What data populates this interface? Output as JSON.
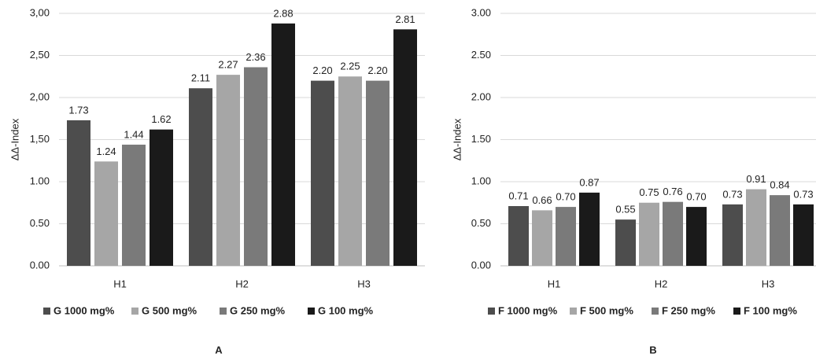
{
  "chart_data": [
    {
      "type": "bar",
      "panel_label": "A",
      "y_label": "ΔΔ-Index",
      "categories": [
        "H1",
        "H2",
        "H3"
      ],
      "series": [
        {
          "name": "G 1000 mg%",
          "color": "#4d4d4d",
          "values": [
            1.73,
            2.11,
            2.2
          ],
          "value_labels": [
            "1.73",
            "2.11",
            "2.20"
          ]
        },
        {
          "name": "G 500 mg%",
          "color": "#a6a6a6",
          "values": [
            1.24,
            2.27,
            2.25
          ],
          "value_labels": [
            "1.24",
            "2.27",
            "2.25"
          ]
        },
        {
          "name": "G 250 mg%",
          "color": "#7a7a7a",
          "values": [
            1.44,
            2.36,
            2.2
          ],
          "value_labels": [
            "1.44",
            "2.36",
            "2.20"
          ]
        },
        {
          "name": "G 100 mg%",
          "color": "#1a1a1a",
          "values": [
            1.62,
            2.88,
            2.81
          ],
          "value_labels": [
            "1.62",
            "2.88",
            "2.81"
          ]
        }
      ],
      "ylim": [
        0,
        3
      ],
      "yticks": [
        {
          "value": 0,
          "label": "0.00"
        },
        {
          "value": 0.5,
          "label": "0.50"
        },
        {
          "value": 1,
          "label": "1.00"
        },
        {
          "value": 1.5,
          "label": "1,50"
        },
        {
          "value": 2,
          "label": "2,00"
        },
        {
          "value": 2.5,
          "label": "2,50"
        },
        {
          "value": 3,
          "label": "3,00"
        }
      ],
      "grid": true
    },
    {
      "type": "bar",
      "panel_label": "B",
      "y_label": "ΔΔ-Index",
      "categories": [
        "H1",
        "H2",
        "H3"
      ],
      "series": [
        {
          "name": "F 1000 mg%",
          "color": "#4d4d4d",
          "values": [
            0.71,
            0.55,
            0.73
          ],
          "value_labels": [
            "0.71",
            "0.55",
            "0.73"
          ]
        },
        {
          "name": "F 500 mg%",
          "color": "#a6a6a6",
          "values": [
            0.66,
            0.75,
            0.91
          ],
          "value_labels": [
            "0.66",
            "0.75",
            "0.91"
          ]
        },
        {
          "name": "F 250 mg%",
          "color": "#7a7a7a",
          "values": [
            0.7,
            0.76,
            0.84
          ],
          "value_labels": [
            "0.70",
            "0.76",
            "0.84"
          ]
        },
        {
          "name": "F 100 mg%",
          "color": "#1a1a1a",
          "values": [
            0.87,
            0.7,
            0.73
          ],
          "value_labels": [
            "0.87",
            "0.70",
            "0.73"
          ]
        }
      ],
      "ylim": [
        0,
        3
      ],
      "yticks": [
        {
          "value": 0,
          "label": "0.00"
        },
        {
          "value": 0.5,
          "label": "0.50"
        },
        {
          "value": 1,
          "label": "1.00"
        },
        {
          "value": 1.5,
          "label": "1.50"
        },
        {
          "value": 2,
          "label": "2.00"
        },
        {
          "value": 2.5,
          "label": "2.50"
        },
        {
          "value": 3,
          "label": "3.00"
        }
      ],
      "grid": true
    }
  ]
}
